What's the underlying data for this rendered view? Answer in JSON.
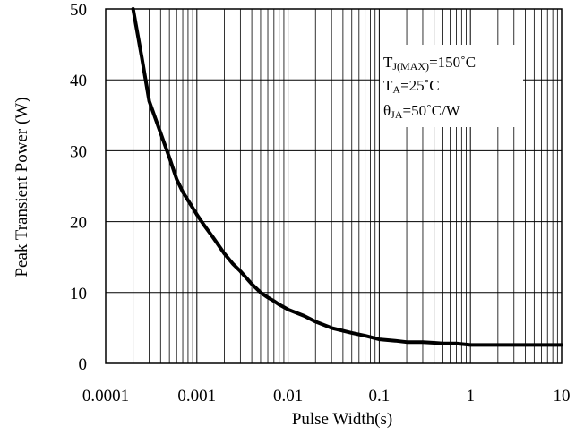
{
  "chart_data": {
    "type": "line",
    "xscale": "log",
    "xlim": [
      0.0001,
      10
    ],
    "ylim": [
      0,
      50
    ],
    "xlabel": "Pulse Width(s)",
    "ylabel": "Peak Transient Power (W)",
    "x_tick_labels": [
      "0.0001",
      "0.001",
      "0.01",
      "0.1",
      "1",
      "10"
    ],
    "x_tick_values": [
      0.0001,
      0.001,
      0.01,
      0.1,
      1,
      10
    ],
    "y_tick_labels": [
      "0",
      "10",
      "20",
      "30",
      "40",
      "50"
    ],
    "y_tick_values": [
      0,
      10,
      20,
      30,
      40,
      50
    ],
    "grid": true,
    "annotations": [
      {
        "main": "T",
        "sub": "J(MAX)",
        "rest": "=150˚C"
      },
      {
        "main": "T",
        "sub": "A",
        "rest": "=25˚C"
      },
      {
        "main": "θ",
        "sub": "JA",
        "rest": "=50˚C/W"
      }
    ],
    "series": [
      {
        "line_color": "#000000",
        "x": [
          0.0002,
          0.00025,
          0.0003,
          0.0004,
          0.0005,
          0.0006,
          0.0007,
          0.0008,
          0.001,
          0.0012,
          0.0015,
          0.002,
          0.0025,
          0.003,
          0.004,
          0.005,
          0.006,
          0.007,
          0.008,
          0.01,
          0.015,
          0.02,
          0.03,
          0.04,
          0.05,
          0.07,
          0.1,
          0.15,
          0.2,
          0.3,
          0.4,
          0.5,
          0.7,
          1,
          2,
          5,
          10
        ],
        "y": [
          50,
          43,
          37,
          32.5,
          29,
          26,
          24.2,
          23,
          21,
          19.5,
          17.8,
          15.5,
          14,
          13,
          11.2,
          10,
          9.3,
          8.8,
          8.3,
          7.6,
          6.7,
          5.9,
          5.0,
          4.6,
          4.3,
          3.9,
          3.4,
          3.2,
          3.0,
          3.0,
          2.9,
          2.8,
          2.8,
          2.6,
          2.6,
          2.6,
          2.6
        ]
      }
    ]
  }
}
